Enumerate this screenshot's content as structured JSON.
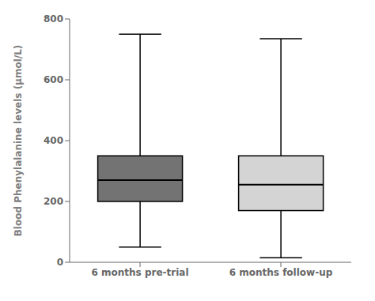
{
  "chart_data": {
    "type": "box",
    "categories": [
      "6 months pre-trial",
      "6 months follow-up"
    ],
    "whisker_low": [
      50,
      15
    ],
    "q1": [
      200,
      170
    ],
    "median": [
      270,
      255
    ],
    "q3": [
      350,
      350
    ],
    "whisker_high": [
      750,
      735
    ],
    "colors": [
      "#737373",
      "#d4d4d4"
    ],
    "ylabel": "Blood Phenylalanine levels (μmol/L)",
    "ylim": [
      0,
      800
    ],
    "yticks": [
      0,
      200,
      400,
      600,
      800
    ]
  }
}
